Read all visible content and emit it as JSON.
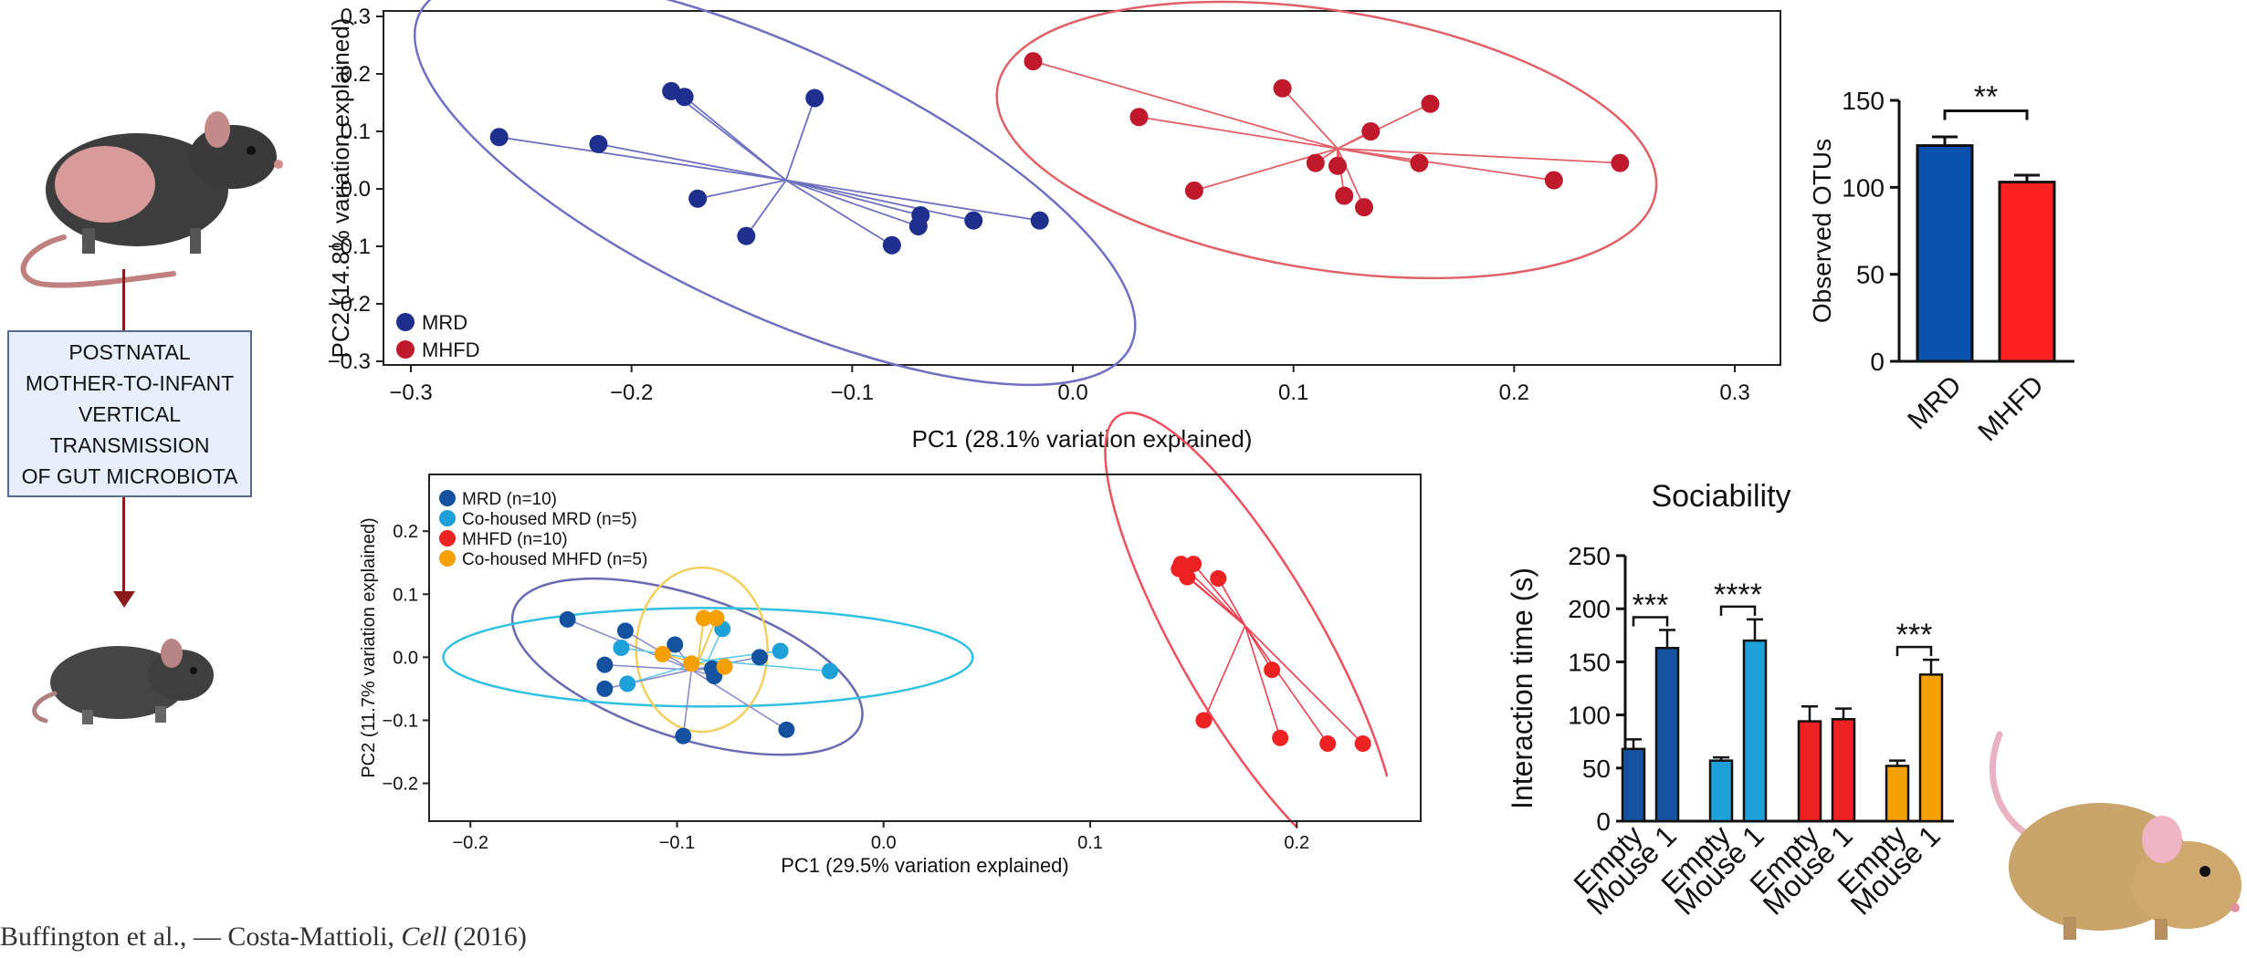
{
  "caption": {
    "lines": [
      "POSTNATAL",
      "MOTHER-TO-INFANT",
      "VERTICAL",
      "TRANSMISSION",
      "OF GUT MICROBIOTA"
    ]
  },
  "citation": {
    "authors": "Buffington et al.,",
    "separator": "—",
    "second": "Costa-Mattioli,",
    "journal": "Cell",
    "year": "(2016)"
  },
  "colors": {
    "mrd": "#1f2f8e",
    "mhfd": "#c0192c",
    "mrd_ellipse": "#7070c0",
    "mhfd_ellipse": "#e06068",
    "b_mrd": "#1452a0",
    "b_cohoused_mrd": "#1ea0d8",
    "b_mhfd": "#ee2222",
    "b_cohoused_mhfd": "#f5a000",
    "bar_mrd": "#0a52b0",
    "bar_mhfd": "#ff2222"
  },
  "chart_data": [
    {
      "id": "pcoa-top",
      "type": "scatter",
      "xlabel": "PC1 (28.1% variation explained)",
      "ylabel": "PC2 (14.8% variation explained)",
      "xlim": [
        -0.3,
        0.3
      ],
      "ylim": [
        -0.3,
        0.3
      ],
      "xticks": [
        "−0.3",
        "−0.2",
        "−0.1",
        "0.0",
        "0.1",
        "0.2",
        "0.3"
      ],
      "yticks": [
        "−0.3",
        "−0.2",
        "−0.1",
        "0.0",
        "0.1",
        "0.2",
        "0.3"
      ],
      "legend_position": "bottom-left",
      "series": [
        {
          "name": "MRD",
          "centroid": [
            -0.13,
            0.015
          ],
          "points": [
            [
              -0.26,
              0.09
            ],
            [
              -0.215,
              0.078
            ],
            [
              -0.182,
              0.17
            ],
            [
              -0.176,
              0.16
            ],
            [
              -0.17,
              -0.017
            ],
            [
              -0.148,
              -0.082
            ],
            [
              -0.117,
              0.158
            ],
            [
              -0.082,
              -0.098
            ],
            [
              -0.07,
              -0.065
            ],
            [
              -0.069,
              -0.046
            ],
            [
              -0.045,
              -0.055
            ],
            [
              -0.015,
              -0.055
            ]
          ]
        },
        {
          "name": "MHFD",
          "centroid": [
            0.12,
            0.07
          ],
          "points": [
            [
              -0.018,
              0.222
            ],
            [
              0.03,
              0.125
            ],
            [
              0.055,
              -0.003
            ],
            [
              0.095,
              0.175
            ],
            [
              0.11,
              0.045
            ],
            [
              0.12,
              0.04
            ],
            [
              0.123,
              -0.012
            ],
            [
              0.132,
              -0.032
            ],
            [
              0.135,
              0.1
            ],
            [
              0.157,
              0.045
            ],
            [
              0.162,
              0.148
            ],
            [
              0.218,
              0.015
            ],
            [
              0.248,
              0.045
            ]
          ]
        }
      ]
    },
    {
      "id": "otus",
      "type": "bar",
      "ylabel": "Observed OTUs",
      "ylim": [
        0,
        150
      ],
      "yticks": [
        "0",
        "50",
        "100",
        "150"
      ],
      "categories": [
        "MRD",
        "MHFD"
      ],
      "values": [
        124,
        103
      ],
      "errors": [
        5,
        4
      ],
      "significance": "**"
    },
    {
      "id": "pcoa-bottom",
      "type": "scatter",
      "xlabel": "PC1 (29.5% variation explained)",
      "ylabel": "PC2 (11.7% variation explained)",
      "xlim": [
        -0.22,
        0.26
      ],
      "ylim": [
        -0.26,
        0.29
      ],
      "xticks": [
        "−0.2",
        "−0.1",
        "0.0",
        "0.1",
        "0.2"
      ],
      "yticks": [
        "−0.2",
        "−0.1",
        "0.0",
        "0.1",
        "0.2"
      ],
      "legend_position": "top-left",
      "series": [
        {
          "name": "MRD (n=10)",
          "centroid": [
            -0.093,
            -0.02
          ],
          "points": [
            [
              -0.153,
              0.06
            ],
            [
              -0.135,
              -0.012
            ],
            [
              -0.135,
              -0.05
            ],
            [
              -0.125,
              0.042
            ],
            [
              -0.101,
              0.02
            ],
            [
              -0.097,
              -0.125
            ],
            [
              -0.083,
              -0.018
            ],
            [
              -0.082,
              -0.03
            ],
            [
              -0.06,
              0.0
            ],
            [
              -0.047,
              -0.115
            ]
          ]
        },
        {
          "name": "Co-housed MRD (n=5)",
          "centroid": [
            -0.085,
            -0.005
          ],
          "points": [
            [
              -0.127,
              0.015
            ],
            [
              -0.124,
              -0.042
            ],
            [
              -0.078,
              0.045
            ],
            [
              -0.05,
              0.01
            ],
            [
              -0.026,
              -0.022
            ]
          ]
        },
        {
          "name": "MHFD (n=10)",
          "centroid": [
            0.175,
            0.05
          ],
          "points": [
            [
              0.143,
              0.14
            ],
            [
              0.144,
              0.148
            ],
            [
              0.147,
              0.127
            ],
            [
              0.15,
              0.148
            ],
            [
              0.155,
              -0.1
            ],
            [
              0.162,
              0.125
            ],
            [
              0.188,
              -0.02
            ],
            [
              0.192,
              -0.128
            ],
            [
              0.215,
              -0.137
            ],
            [
              0.232,
              -0.137
            ]
          ]
        },
        {
          "name": "Co-housed MHFD (n=5)",
          "centroid": [
            -0.09,
            -0.01
          ],
          "points": [
            [
              -0.107,
              0.005
            ],
            [
              -0.093,
              -0.01
            ],
            [
              -0.087,
              0.062
            ],
            [
              -0.081,
              0.062
            ],
            [
              -0.077,
              -0.015
            ]
          ]
        }
      ]
    },
    {
      "id": "sociability",
      "type": "bar",
      "title": "Sociability",
      "ylabel": "Interaction time (s)",
      "ylim": [
        0,
        250
      ],
      "yticks": [
        "0",
        "50",
        "100",
        "150",
        "200",
        "250"
      ],
      "categories": [
        "Empty",
        "Mouse 1",
        "Empty",
        "Mouse 1",
        "Empty",
        "Mouse 1",
        "Empty",
        "Mouse 1"
      ],
      "values": [
        68,
        163,
        57,
        170,
        94,
        96,
        52,
        138
      ],
      "errors": [
        9,
        17,
        3,
        20,
        14,
        10,
        5,
        14
      ],
      "significance": [
        {
          "pair": [
            0,
            1
          ],
          "label": "***"
        },
        {
          "pair": [
            2,
            3
          ],
          "label": "****"
        },
        {
          "pair": [
            6,
            7
          ],
          "label": "***"
        }
      ]
    }
  ]
}
